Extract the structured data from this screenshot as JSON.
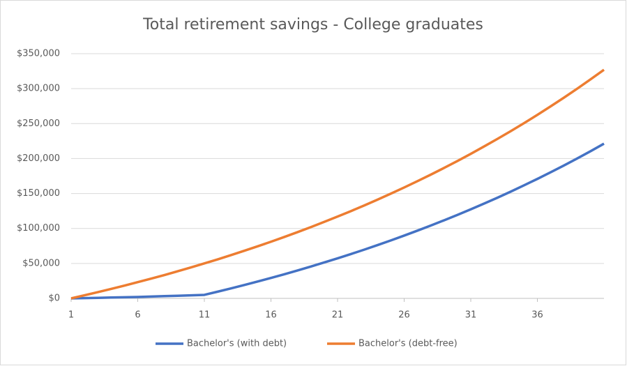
{
  "chart_data": {
    "type": "line",
    "title": "Total retirement savings - College graduates",
    "x": [
      1,
      2,
      3,
      4,
      5,
      6,
      7,
      8,
      9,
      10,
      11,
      12,
      13,
      14,
      15,
      16,
      17,
      18,
      19,
      20,
      21,
      22,
      23,
      24,
      25,
      26,
      27,
      28,
      29,
      30,
      31,
      32,
      33,
      34,
      35,
      36,
      37,
      38,
      39,
      40,
      41
    ],
    "series": [
      {
        "name": "Bachelor's (with debt)",
        "color": "#4472c4",
        "values": [
          0,
          400,
          800,
          1200,
          1600,
          2000,
          2600,
          3200,
          3800,
          4400,
          5000,
          9600,
          14300,
          19100,
          24100,
          29200,
          34500,
          40000,
          45600,
          51400,
          57300,
          63400,
          69700,
          76200,
          82900,
          89800,
          96900,
          104200,
          111700,
          119400,
          127400,
          135600,
          144000,
          152700,
          161700,
          170900,
          180400,
          190200,
          200200,
          210600,
          221300
        ]
      },
      {
        "name": "Bachelor's (debt-free)",
        "color": "#ed7d31",
        "values": [
          0,
          4400,
          8900,
          13500,
          18300,
          23200,
          28200,
          33400,
          38800,
          44300,
          50000,
          55800,
          61900,
          68100,
          74500,
          81000,
          87800,
          94800,
          102000,
          109400,
          117000,
          124800,
          132900,
          141200,
          149800,
          158600,
          167700,
          177000,
          186600,
          196500,
          206700,
          217300,
          228100,
          239200,
          250700,
          262500,
          274700,
          287200,
          300100,
          313400,
          327000
        ]
      }
    ],
    "xlim": [
      1,
      41
    ],
    "xticks": [
      1,
      6,
      11,
      16,
      21,
      26,
      31,
      36
    ],
    "ylim": [
      0,
      350000
    ],
    "yticks": [
      {
        "value": 0,
        "label": "$0"
      },
      {
        "value": 50000,
        "label": "$50,000"
      },
      {
        "value": 100000,
        "label": "$100,000"
      },
      {
        "value": 150000,
        "label": "$150,000"
      },
      {
        "value": 200000,
        "label": "$200,000"
      },
      {
        "value": 250000,
        "label": "$250,000"
      },
      {
        "value": 300000,
        "label": "$300,000"
      },
      {
        "value": 350000,
        "label": "$350,000"
      }
    ],
    "grid": true,
    "legend": "bottom"
  }
}
